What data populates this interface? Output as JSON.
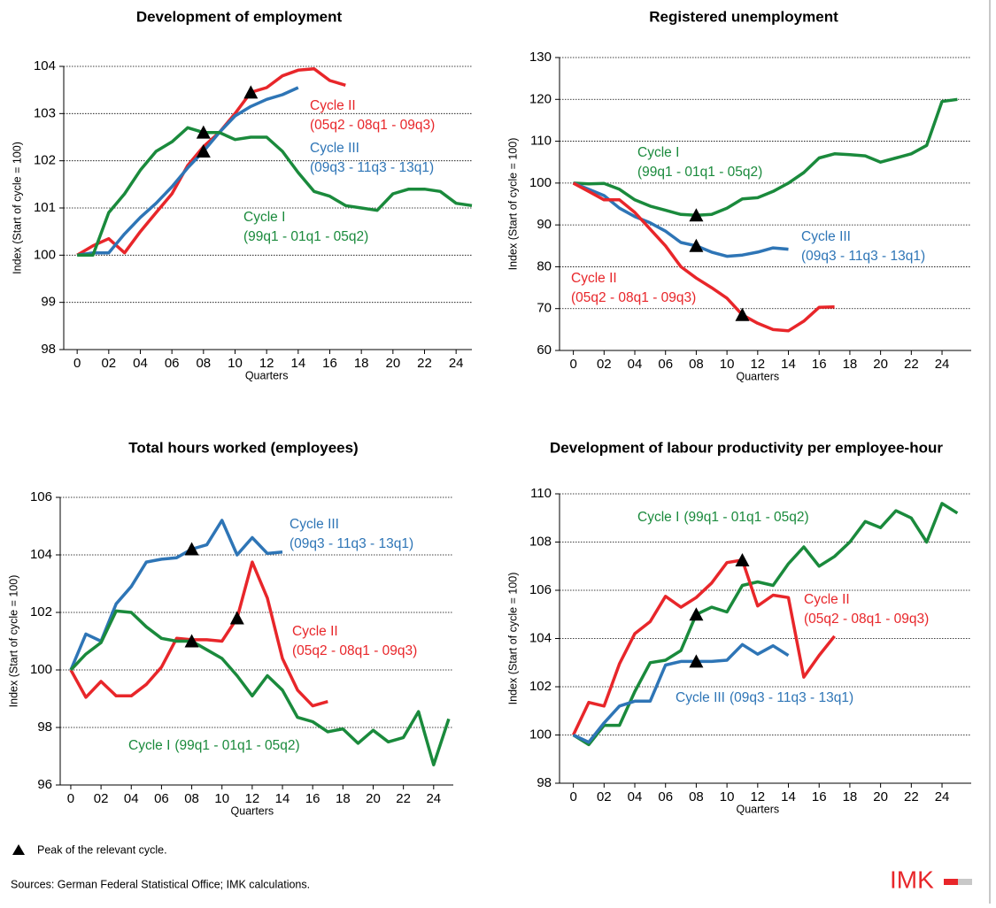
{
  "chart_data": [
    {
      "type": "line",
      "title": "Development of employment",
      "y_label": "Index (Start of cycle = 100)",
      "x_label": "Quarters",
      "x": [
        0,
        1,
        2,
        3,
        4,
        5,
        6,
        7,
        8,
        9,
        10,
        11,
        12,
        13,
        14,
        15,
        16,
        17,
        18,
        19,
        20,
        21,
        22,
        23,
        24,
        25
      ],
      "xlim": [
        -0.85,
        25.0
      ],
      "ylim": [
        98,
        104
      ],
      "yticks": [
        98,
        99,
        100,
        101,
        102,
        103,
        104
      ],
      "xticks": [
        0,
        {
          "value": 2,
          "label": "02"
        },
        {
          "value": 4,
          "label": "04"
        },
        {
          "value": 6,
          "label": "06"
        },
        {
          "value": 8,
          "label": "08"
        },
        10,
        12,
        14,
        16,
        18,
        20,
        22,
        24
      ],
      "grid": true,
      "series": [
        {
          "name": "Cycle II",
          "period": "(05q2 - 08q1 - 09q3)",
          "color": "#e8262a",
          "peak_x": 11,
          "values": [
            100,
            100.2,
            100.35,
            100.05,
            100.5,
            100.9,
            101.3,
            101.9,
            102.3,
            102.6,
            103.0,
            103.45,
            103.55,
            103.8,
            103.92,
            103.95,
            103.7,
            103.6,
            null,
            null,
            null,
            null,
            null,
            null,
            null,
            null
          ]
        },
        {
          "name": "Cycle III",
          "period": "(09q3 - 11q3 - 13q1)",
          "color": "#2e75b6",
          "peak_x": 8,
          "values": [
            100,
            100.05,
            100.05,
            100.45,
            100.8,
            101.1,
            101.45,
            101.85,
            102.2,
            102.6,
            102.95,
            103.15,
            103.3,
            103.4,
            103.55,
            null,
            null,
            null,
            null,
            null,
            null,
            null,
            null,
            null,
            null,
            null
          ]
        },
        {
          "name": "Cycle I",
          "period": "(99q1 - 01q1 - 05q2)",
          "color": "#1a8a3c",
          "peak_x": 8,
          "values": [
            100,
            100.0,
            100.9,
            101.3,
            101.8,
            102.2,
            102.4,
            102.7,
            102.6,
            102.6,
            102.45,
            102.5,
            102.5,
            102.2,
            101.75,
            101.35,
            101.25,
            101.05,
            101.0,
            100.95,
            101.3,
            101.4,
            101.4,
            101.35,
            101.1,
            101.05
          ]
        }
      ]
    },
    {
      "type": "line",
      "title": "Registered unemployment",
      "y_label": "Index (Start of cycle = 100)",
      "x_label": "Quarters",
      "x": [
        0,
        1,
        2,
        3,
        4,
        5,
        6,
        7,
        8,
        9,
        10,
        11,
        12,
        13,
        14,
        15,
        16,
        17,
        18,
        19,
        20,
        21,
        22,
        23,
        24,
        25
      ],
      "xlim": [
        -0.9,
        25.9
      ],
      "ylim": [
        60,
        130
      ],
      "yticks": [
        60,
        70,
        80,
        90,
        100,
        110,
        120,
        130
      ],
      "xticks": [
        0,
        {
          "value": 2,
          "label": "02"
        },
        {
          "value": 4,
          "label": "04"
        },
        {
          "value": 6,
          "label": "06"
        },
        {
          "value": 8,
          "label": "08"
        },
        10,
        12,
        14,
        16,
        18,
        20,
        22,
        24
      ],
      "grid": true,
      "series": [
        {
          "name": "Cycle I",
          "period": "(99q1 - 01q1 - 05q2)",
          "color": "#1a8a3c",
          "peak_x": 8,
          "values": [
            100,
            99.8,
            99.9,
            98.5,
            96,
            94.5,
            93.5,
            92.5,
            92.3,
            92.5,
            94,
            96.2,
            96.5,
            98,
            100,
            102.5,
            106,
            107,
            106.8,
            106.5,
            105,
            106,
            107,
            109,
            119.5,
            120
          ]
        },
        {
          "name": "Cycle III",
          "period": "(09q3 - 11q3 - 13q1)",
          "color": "#2e75b6",
          "peak_x": 8,
          "values": [
            100,
            98.5,
            97,
            94,
            92,
            90.5,
            88.5,
            85.8,
            85,
            83.5,
            82.5,
            82.8,
            83.5,
            84.5,
            84.2,
            null,
            null,
            null,
            null,
            null,
            null,
            null,
            null,
            null,
            null,
            null
          ]
        },
        {
          "name": "Cycle II",
          "period": "(05q2 - 08q1 - 09q3)",
          "color": "#e8262a",
          "peak_x": 11,
          "values": [
            100,
            98,
            96,
            96,
            93,
            89,
            85,
            80,
            77.3,
            75,
            72.5,
            68.5,
            66.5,
            65,
            64.7,
            67,
            70.3,
            70.4,
            null,
            null,
            null,
            null,
            null,
            null,
            null,
            null
          ]
        }
      ]
    },
    {
      "type": "line",
      "title": "Total hours worked (employees)",
      "y_label": "Index (Start of cycle = 100)",
      "x_label": "Quarters",
      "x": [
        0,
        1,
        2,
        3,
        4,
        5,
        6,
        7,
        8,
        9,
        10,
        11,
        12,
        13,
        14,
        15,
        16,
        17,
        18,
        19,
        20,
        21,
        22,
        23,
        24,
        25
      ],
      "xlim": [
        -0.7,
        25.3
      ],
      "ylim": [
        96,
        106
      ],
      "yticks": [
        96,
        98,
        100,
        102,
        104,
        106
      ],
      "xticks": [
        0,
        {
          "value": 2,
          "label": "02"
        },
        {
          "value": 4,
          "label": "04"
        },
        {
          "value": 6,
          "label": "06"
        },
        {
          "value": 8,
          "label": "08"
        },
        10,
        12,
        14,
        16,
        18,
        20,
        22,
        24
      ],
      "grid": true,
      "series": [
        {
          "name": "Cycle III",
          "period": "(09q3 - 11q3 - 13q1)",
          "color": "#2e75b6",
          "peak_x": 8,
          "values": [
            100,
            101.25,
            101,
            102.3,
            102.9,
            103.75,
            103.85,
            103.9,
            104.2,
            104.35,
            105.2,
            104,
            104.6,
            104.05,
            104.1,
            null,
            null,
            null,
            null,
            null,
            null,
            null,
            null,
            null,
            null,
            null
          ]
        },
        {
          "name": "Cycle II",
          "period": "(05q2 - 08q1 - 09q3)",
          "color": "#e8262a",
          "peak_x": 11,
          "values": [
            100,
            99.05,
            99.6,
            99.1,
            99.1,
            99.5,
            100.1,
            101.1,
            101.05,
            101.05,
            101.0,
            101.8,
            103.75,
            102.5,
            100.4,
            99.3,
            98.75,
            98.9,
            null,
            null,
            null,
            null,
            null,
            null,
            null,
            null
          ]
        },
        {
          "name": "Cycle I",
          "period": "(99q1 - 01q1 - 05q2)",
          "color": "#1a8a3c",
          "peak_x": 8,
          "values": [
            100,
            100.55,
            100.95,
            102.05,
            102.0,
            101.5,
            101.1,
            101.0,
            101.0,
            100.7,
            100.4,
            99.8,
            99.1,
            99.8,
            99.3,
            98.35,
            98.2,
            97.85,
            97.95,
            97.45,
            97.9,
            97.5,
            97.65,
            98.55,
            96.7,
            98.3
          ]
        }
      ]
    },
    {
      "type": "line",
      "title": "Development of labour productivity per employee-hour",
      "y_label": "Index (Start of cycle = 100)",
      "x_label": "Quarters",
      "x": [
        0,
        1,
        2,
        3,
        4,
        5,
        6,
        7,
        8,
        9,
        10,
        11,
        12,
        13,
        14,
        15,
        16,
        17,
        18,
        19,
        20,
        21,
        22,
        23,
        24,
        25
      ],
      "xlim": [
        -0.9,
        25.9
      ],
      "ylim": [
        98,
        110
      ],
      "yticks": [
        98,
        100,
        102,
        104,
        106,
        108,
        110
      ],
      "xticks": [
        0,
        {
          "value": 2,
          "label": "02"
        },
        {
          "value": 4,
          "label": "04"
        },
        {
          "value": 6,
          "label": "06"
        },
        {
          "value": 8,
          "label": "08"
        },
        10,
        12,
        14,
        16,
        18,
        20,
        22,
        24
      ],
      "grid": true,
      "series": [
        {
          "name": "Cycle I",
          "period": "(99q1 - 01q1 - 05q2)",
          "color": "#1a8a3c",
          "peak_x": 8,
          "values": [
            100,
            99.6,
            100.4,
            100.4,
            101.8,
            103.0,
            103.1,
            103.5,
            105.0,
            105.3,
            105.1,
            106.2,
            106.35,
            106.2,
            107.1,
            107.8,
            107.0,
            107.4,
            108.0,
            108.85,
            108.6,
            109.3,
            109.0,
            108.0,
            109.6,
            109.2
          ]
        },
        {
          "name": "Cycle II",
          "period": "(05q2 - 08q1 - 09q3)",
          "color": "#e8262a",
          "peak_x": 11,
          "values": [
            100,
            101.35,
            101.2,
            102.95,
            104.2,
            104.7,
            105.75,
            105.3,
            105.7,
            106.3,
            107.15,
            107.25,
            105.35,
            105.8,
            105.7,
            102.4,
            103.3,
            104.1,
            null,
            null,
            null,
            null,
            null,
            null,
            null,
            null
          ]
        },
        {
          "name": "Cycle III",
          "period": "(09q3 - 11q3 - 13q1)",
          "color": "#2e75b6",
          "peak_x": 8,
          "values": [
            100,
            99.7,
            100.5,
            101.2,
            101.4,
            101.4,
            102.9,
            103.05,
            103.05,
            103.05,
            103.1,
            103.75,
            103.35,
            103.7,
            103.3,
            null,
            null,
            null,
            null,
            null,
            null,
            null,
            null,
            null,
            null,
            null
          ]
        }
      ]
    }
  ],
  "footer": {
    "peak_note": "Peak of the relevant cycle.",
    "sources": "Sources: German Federal Statistical Office; IMK calculations.",
    "logo": "IMK"
  }
}
